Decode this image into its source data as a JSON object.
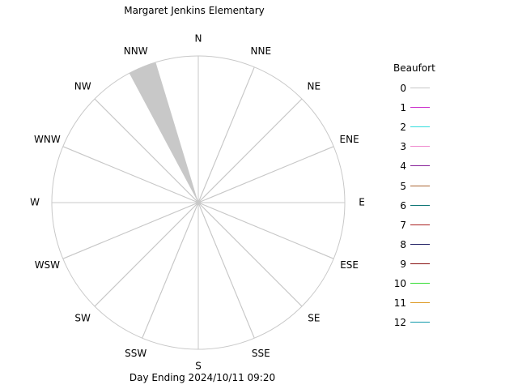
{
  "title": "Margaret Jenkins Elementary",
  "footer": "Day Ending 2024/10/11 09:20",
  "chart_data": {
    "type": "wind-rose",
    "directions": [
      "N",
      "NNE",
      "NE",
      "ENE",
      "E",
      "ESE",
      "SE",
      "SSE",
      "S",
      "SSW",
      "SW",
      "WSW",
      "W",
      "WNW",
      "NW",
      "NNW"
    ],
    "petals": [
      {
        "direction": "NNW",
        "beaufort": 0,
        "value": 1.0
      }
    ],
    "wedge_color": "#c8c8c8",
    "grid": true,
    "legend_placement": "right",
    "legend": {
      "title": "Beaufort",
      "entries": [
        {
          "label": "0",
          "color": "#c8c8c8"
        },
        {
          "label": "1",
          "color": "#cc33cc"
        },
        {
          "label": "2",
          "color": "#33dddd"
        },
        {
          "label": "3",
          "color": "#ee88cc"
        },
        {
          "label": "4",
          "color": "#882299"
        },
        {
          "label": "5",
          "color": "#aa6633"
        },
        {
          "label": "6",
          "color": "#117777"
        },
        {
          "label": "7",
          "color": "#aa2222"
        },
        {
          "label": "8",
          "color": "#222266"
        },
        {
          "label": "9",
          "color": "#881111"
        },
        {
          "label": "10",
          "color": "#33dd33"
        },
        {
          "label": "11",
          "color": "#dd9922"
        },
        {
          "label": "12",
          "color": "#1199aa"
        }
      ]
    }
  }
}
